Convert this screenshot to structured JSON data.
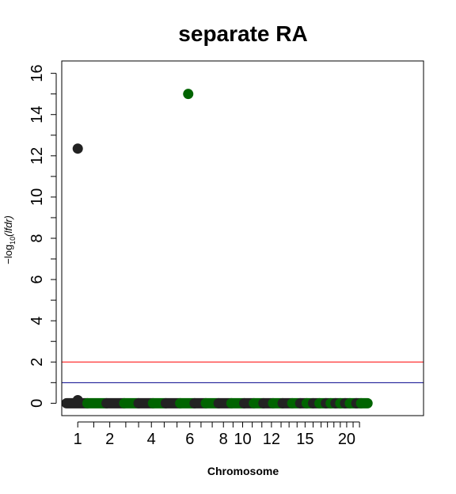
{
  "chart_data": {
    "type": "scatter",
    "title": "separate RA",
    "xlabel": "Chromosome",
    "ylabel": {
      "prefix": "−log",
      "sub": "10",
      "inner": "(lfdr)"
    },
    "ylim": [
      -0.6,
      16.6
    ],
    "xlim": [
      0,
      22.6
    ],
    "y_ticks": [
      0,
      2,
      4,
      6,
      8,
      10,
      12,
      14,
      16
    ],
    "y_ticks_minor": [
      1,
      3,
      5,
      7,
      9,
      11,
      13,
      15
    ],
    "x_ticks": [
      {
        "pos": 1.0,
        "label": "1"
      },
      {
        "pos": 2.0,
        "label": ""
      },
      {
        "pos": 3.0,
        "label": "2"
      },
      {
        "pos": 4.0,
        "label": ""
      },
      {
        "pos": 4.8,
        "label": ""
      },
      {
        "pos": 5.6,
        "label": "4"
      },
      {
        "pos": 6.4,
        "label": ""
      },
      {
        "pos": 7.2,
        "label": ""
      },
      {
        "pos": 8.0,
        "label": "6"
      },
      {
        "pos": 8.7,
        "label": ""
      },
      {
        "pos": 9.4,
        "label": ""
      },
      {
        "pos": 10.1,
        "label": "8"
      },
      {
        "pos": 10.7,
        "label": ""
      },
      {
        "pos": 11.3,
        "label": "10"
      },
      {
        "pos": 11.9,
        "label": ""
      },
      {
        "pos": 12.5,
        "label": ""
      },
      {
        "pos": 13.1,
        "label": "12"
      },
      {
        "pos": 13.7,
        "label": ""
      },
      {
        "pos": 14.2,
        "label": ""
      },
      {
        "pos": 14.7,
        "label": ""
      },
      {
        "pos": 15.2,
        "label": "15"
      },
      {
        "pos": 15.7,
        "label": ""
      },
      {
        "pos": 16.2,
        "label": ""
      },
      {
        "pos": 16.6,
        "label": ""
      },
      {
        "pos": 17.0,
        "label": ""
      },
      {
        "pos": 17.4,
        "label": ""
      },
      {
        "pos": 17.8,
        "label": "20"
      },
      {
        "pos": 18.2,
        "label": ""
      },
      {
        "pos": 18.6,
        "label": ""
      }
    ],
    "hlines": [
      {
        "y": 2,
        "color": "#ff0000"
      },
      {
        "y": 1,
        "color": "#00008b"
      }
    ],
    "chromosome_bands": [
      {
        "start": 0.3,
        "end": 1.6,
        "color": "#222222"
      },
      {
        "start": 1.6,
        "end": 2.8,
        "color": "#006400"
      },
      {
        "start": 2.8,
        "end": 3.9,
        "color": "#222222"
      },
      {
        "start": 3.9,
        "end": 4.8,
        "color": "#006400"
      },
      {
        "start": 4.8,
        "end": 5.7,
        "color": "#222222"
      },
      {
        "start": 5.7,
        "end": 6.5,
        "color": "#006400"
      },
      {
        "start": 6.5,
        "end": 7.4,
        "color": "#222222"
      },
      {
        "start": 7.4,
        "end": 8.3,
        "color": "#006400"
      },
      {
        "start": 8.3,
        "end": 9.0,
        "color": "#222222"
      },
      {
        "start": 9.0,
        "end": 9.8,
        "color": "#006400"
      },
      {
        "start": 9.8,
        "end": 10.6,
        "color": "#222222"
      },
      {
        "start": 10.6,
        "end": 11.4,
        "color": "#006400"
      },
      {
        "start": 11.4,
        "end": 12.0,
        "color": "#222222"
      },
      {
        "start": 12.0,
        "end": 12.6,
        "color": "#006400"
      },
      {
        "start": 12.6,
        "end": 13.2,
        "color": "#222222"
      },
      {
        "start": 13.2,
        "end": 13.8,
        "color": "#006400"
      },
      {
        "start": 13.8,
        "end": 14.4,
        "color": "#222222"
      },
      {
        "start": 14.4,
        "end": 14.9,
        "color": "#006400"
      },
      {
        "start": 14.9,
        "end": 15.3,
        "color": "#222222"
      },
      {
        "start": 15.3,
        "end": 15.7,
        "color": "#006400"
      },
      {
        "start": 15.7,
        "end": 16.1,
        "color": "#222222"
      },
      {
        "start": 16.1,
        "end": 16.5,
        "color": "#006400"
      },
      {
        "start": 16.5,
        "end": 16.8,
        "color": "#222222"
      },
      {
        "start": 16.8,
        "end": 17.1,
        "color": "#006400"
      },
      {
        "start": 17.1,
        "end": 17.4,
        "color": "#222222"
      },
      {
        "start": 17.4,
        "end": 17.7,
        "color": "#006400"
      },
      {
        "start": 17.7,
        "end": 18.0,
        "color": "#222222"
      },
      {
        "start": 18.0,
        "end": 18.4,
        "color": "#006400"
      },
      {
        "start": 18.4,
        "end": 18.7,
        "color": "#222222"
      },
      {
        "start": 18.7,
        "end": 19.1,
        "color": "#006400"
      }
    ],
    "points": [
      {
        "x": 1.0,
        "y": 0.15,
        "color": "#222222"
      },
      {
        "x": 1.0,
        "y": 12.35,
        "color": "#222222"
      },
      {
        "x": 7.9,
        "y": 15.0,
        "color": "#006400"
      }
    ]
  }
}
